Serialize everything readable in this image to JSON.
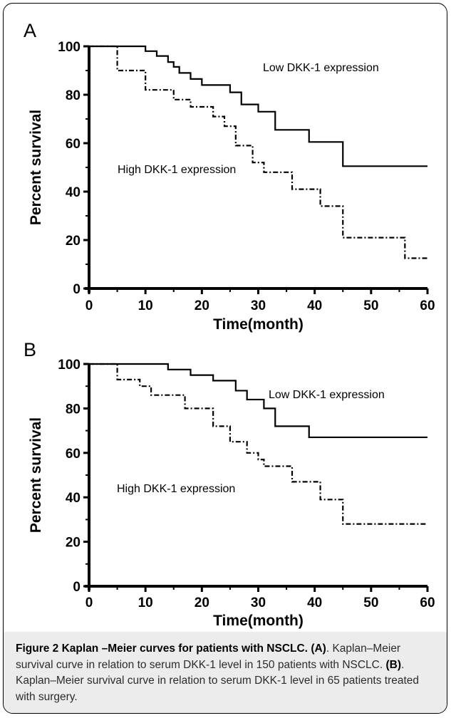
{
  "chart_data": [
    {
      "panel": "A",
      "type": "line",
      "xlabel": "Time(month)",
      "ylabel": "Percent survival",
      "xlim": [
        0,
        60
      ],
      "ylim": [
        0,
        100
      ],
      "xticks": [
        0,
        10,
        20,
        30,
        40,
        50,
        60
      ],
      "yticks": [
        0,
        20,
        40,
        60,
        80,
        100
      ],
      "step": true,
      "series": [
        {
          "name": "Low DKK-1 expression",
          "style": "solid",
          "x": [
            0,
            10,
            12,
            14,
            15,
            16,
            18,
            20,
            25,
            27,
            30,
            33,
            39,
            45,
            60
          ],
          "y": [
            100,
            98,
            96,
            93.5,
            91.5,
            89,
            86.5,
            84,
            81,
            76,
            73,
            65.5,
            60.5,
            50.5,
            50.5
          ]
        },
        {
          "name": "High DKK-1 expression",
          "style": "dashed",
          "x": [
            0,
            5,
            10,
            15,
            18,
            22,
            24,
            26,
            29,
            31,
            36,
            41,
            45,
            56,
            60
          ],
          "y": [
            100,
            90,
            82,
            78,
            75,
            71,
            67,
            59,
            52,
            48,
            41,
            34,
            21,
            12.5,
            12.5
          ]
        }
      ]
    },
    {
      "panel": "B",
      "type": "line",
      "xlabel": "Time(month)",
      "ylabel": "Percent survival",
      "xlim": [
        0,
        60
      ],
      "ylim": [
        0,
        100
      ],
      "xticks": [
        0,
        10,
        20,
        30,
        40,
        50,
        60
      ],
      "yticks": [
        0,
        20,
        40,
        60,
        80,
        100
      ],
      "step": true,
      "series": [
        {
          "name": "Low DKK-1 expression",
          "style": "solid",
          "x": [
            0,
            14,
            18,
            22,
            26,
            28,
            31,
            33,
            39,
            60
          ],
          "y": [
            100,
            97.5,
            95,
            92.5,
            88,
            84,
            80,
            72,
            67,
            67
          ]
        },
        {
          "name": "High DKK-1 expression",
          "style": "dashed",
          "x": [
            0,
            5,
            9,
            11,
            17,
            22,
            25,
            28,
            30,
            31,
            36,
            41,
            45,
            60
          ],
          "y": [
            100,
            93,
            90,
            86,
            80,
            72,
            65,
            60,
            57,
            54,
            47,
            39,
            28,
            28
          ]
        }
      ]
    }
  ],
  "caption": {
    "figure_label": "Figure 2",
    "title": " Kaplan –Meier curves for patients with NSCLC.",
    "label_a": "(A)",
    "text_a": ". Kaplan–Meier survival curve in relation to serum DKK-1 level in 150 patients with NSCLC.",
    "label_b": "(B)",
    "text_b": ". Kaplan–Meier survival curve in relation to serum DKK-1 level in 65 patients treated with surgery."
  }
}
